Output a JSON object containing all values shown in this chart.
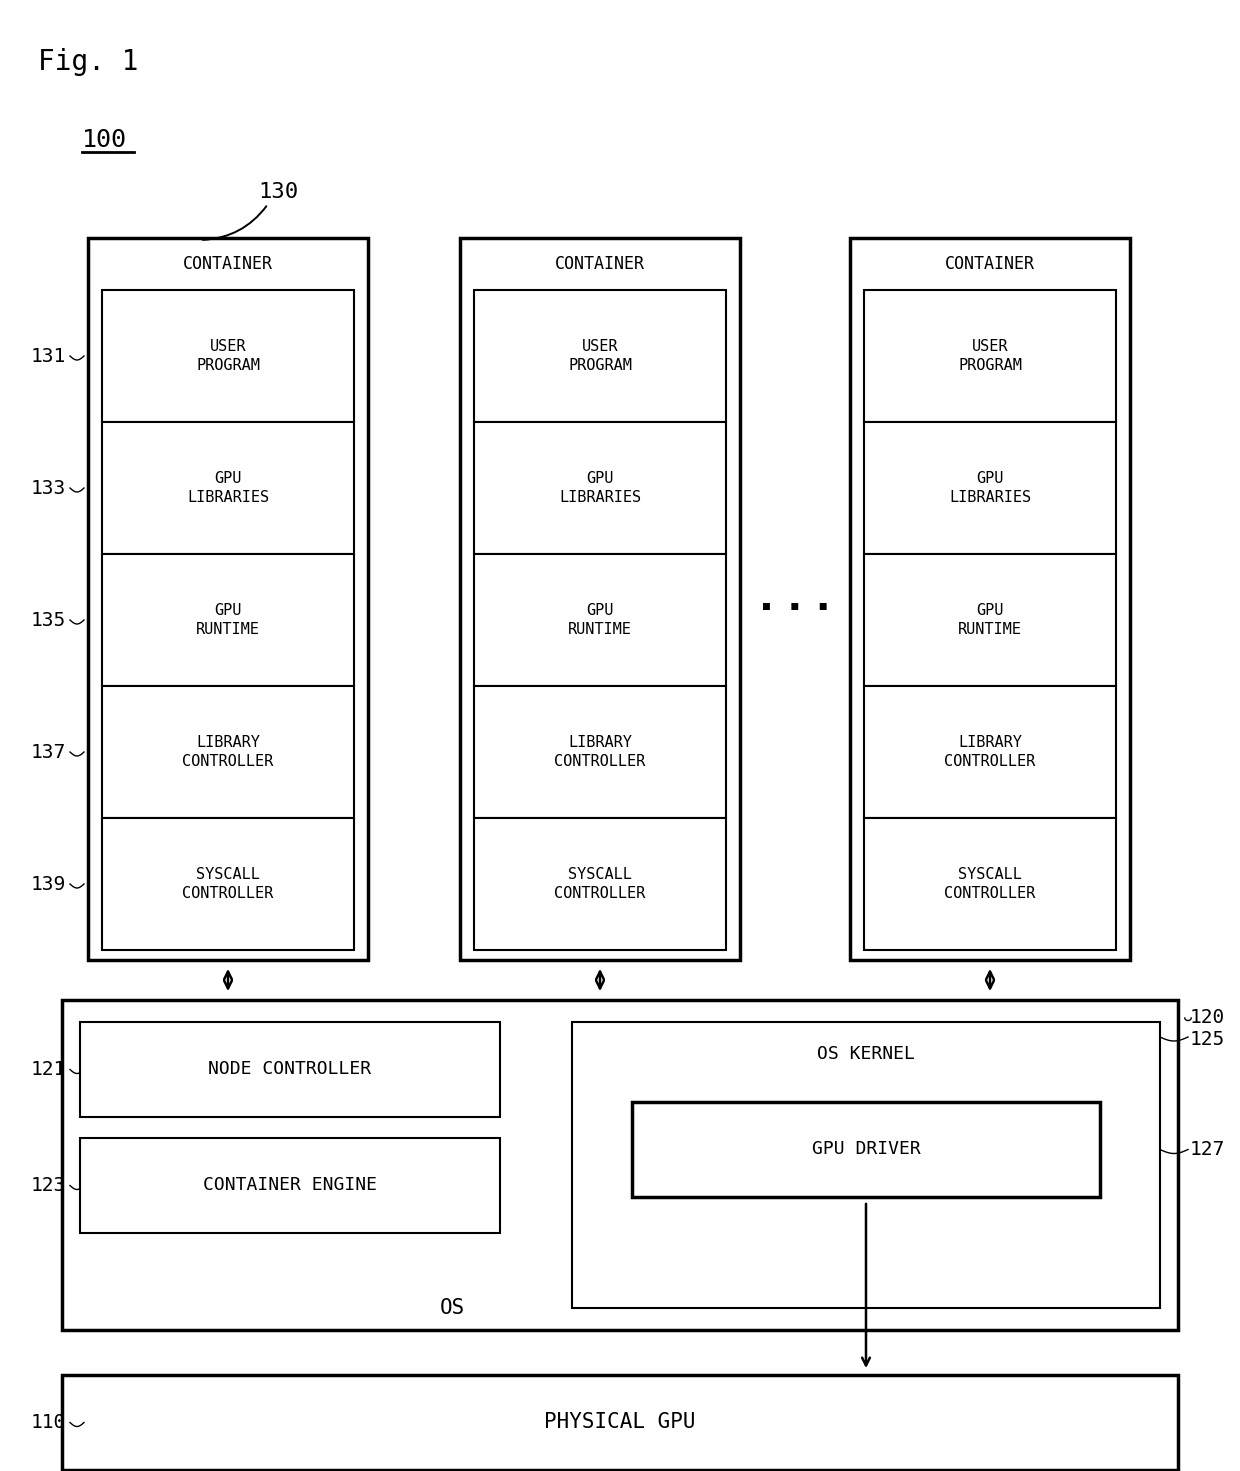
{
  "fig_label": "Fig. 1",
  "label_100": "100",
  "label_130": "130",
  "label_131": "131",
  "label_133": "133",
  "label_135": "135",
  "label_137": "137",
  "label_139": "139",
  "label_110": "110",
  "label_120": "120",
  "label_121": "121",
  "label_123": "123",
  "label_125": "125",
  "label_127": "127",
  "container_label": "CONTAINER",
  "layers": [
    "USER\nPROGRAM",
    "GPU\nLIBRARIES",
    "GPU\nRUNTIME",
    "LIBRARY\nCONTROLLER",
    "SYSCALL\nCONTROLLER"
  ],
  "node_controller_label": "NODE CONTROLLER",
  "container_engine_label": "CONTAINER ENGINE",
  "os_kernel_label": "OS KERNEL",
  "gpu_driver_label": "GPU DRIVER",
  "os_label": "OS",
  "physical_gpu_label": "PHYSICAL GPU",
  "dots": ". . .",
  "bg_color": "white",
  "box_edge_color": "black",
  "text_color": "black",
  "lw_inner": 1.5,
  "lw_outer": 2.5
}
